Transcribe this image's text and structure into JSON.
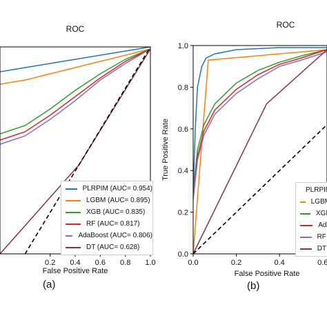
{
  "chart_data": [
    {
      "type": "line",
      "title": "ROC",
      "xlabel": "False Positive Rate",
      "ylabel": "",
      "xlim": [
        -0.2,
        1.0
      ],
      "ylim": [
        0.0,
        1.0
      ],
      "xticks": [
        "0.2",
        "0.4",
        "0.6",
        "0.8",
        "1.0"
      ],
      "yticks": [],
      "legend_position": "bottom-right",
      "series": [
        {
          "name": "PLRPIM (AUC= 0.954)",
          "color": "#1f77b4",
          "x": [
            -0.2,
            -0.1,
            0.0,
            0.2,
            0.4,
            0.6,
            0.8,
            1.0
          ],
          "y": [
            0.88,
            0.89,
            0.9,
            0.92,
            0.94,
            0.96,
            0.98,
            1.0
          ]
        },
        {
          "name": "LGBM (AUC= 0.895)",
          "color": "#ff7f0e",
          "x": [
            -0.2,
            0.0,
            0.2,
            0.4,
            0.6,
            0.8,
            1.0
          ],
          "y": [
            0.82,
            0.84,
            0.87,
            0.9,
            0.93,
            0.96,
            0.99
          ]
        },
        {
          "name": "XGB (AUC= 0.835)",
          "color": "#2ca02c",
          "x": [
            -0.2,
            -0.1,
            0.0,
            0.1,
            0.2,
            0.4,
            0.6,
            0.8,
            1.0
          ],
          "y": [
            0.58,
            0.6,
            0.62,
            0.66,
            0.7,
            0.79,
            0.87,
            0.94,
            0.99
          ]
        },
        {
          "name": "RF (AUC= 0.817)",
          "color": "#d62728",
          "x": [
            -0.2,
            -0.1,
            0.0,
            0.1,
            0.2,
            0.4,
            0.6,
            0.8,
            1.0
          ],
          "y": [
            0.55,
            0.57,
            0.59,
            0.63,
            0.67,
            0.76,
            0.85,
            0.93,
            0.99
          ]
        },
        {
          "name": "AdaBoost (AUC= 0.806)",
          "color": "#9467bd",
          "x": [
            -0.2,
            -0.1,
            0.0,
            0.1,
            0.2,
            0.4,
            0.6,
            0.8,
            1.0
          ],
          "y": [
            0.53,
            0.55,
            0.57,
            0.61,
            0.65,
            0.74,
            0.84,
            0.92,
            0.99
          ]
        },
        {
          "name": "DT (AUC= 0.628)",
          "color": "#8c2d4a",
          "x": [
            -0.2,
            0.43,
            1.0
          ],
          "y": [
            0.0,
            0.43,
            0.99
          ]
        },
        {
          "name": "",
          "color": "#000000",
          "dashed": true,
          "x": [
            -0.2,
            1.0
          ],
          "y": [
            -0.2,
            1.0
          ]
        }
      ]
    },
    {
      "type": "line",
      "title": "ROC",
      "xlabel": "False Positive Rate",
      "ylabel": "True Positive Rate",
      "xlim": [
        0.0,
        0.62
      ],
      "ylim": [
        0.0,
        1.0
      ],
      "xticks": [
        "0.0",
        "0.2",
        "0.4",
        "0.6"
      ],
      "yticks": [
        "0.0",
        "0.2",
        "0.4",
        "0.6",
        "0.8",
        "1.0"
      ],
      "legend_position": "bottom-right",
      "series": [
        {
          "name": "PLRPIM",
          "color": "#1f77b4",
          "x": [
            0.0,
            0.01,
            0.02,
            0.04,
            0.06,
            0.1,
            0.2,
            0.4,
            0.62
          ],
          "y": [
            0.3,
            0.6,
            0.8,
            0.9,
            0.94,
            0.96,
            0.98,
            0.99,
            0.99
          ]
        },
        {
          "name": "LGBM",
          "color": "#ff7f0e",
          "x": [
            0.0,
            0.07,
            0.62
          ],
          "y": [
            0.0,
            0.93,
            0.98
          ]
        },
        {
          "name": "XGB",
          "color": "#2ca02c",
          "x": [
            0.0,
            0.02,
            0.05,
            0.1,
            0.2,
            0.3,
            0.4,
            0.5,
            0.62
          ],
          "y": [
            0.3,
            0.5,
            0.62,
            0.72,
            0.82,
            0.88,
            0.92,
            0.95,
            0.98
          ]
        },
        {
          "name": "Ada",
          "color": "#d62728",
          "x": [
            0.0,
            0.02,
            0.05,
            0.1,
            0.2,
            0.3,
            0.4,
            0.5,
            0.62
          ],
          "y": [
            0.28,
            0.47,
            0.59,
            0.69,
            0.79,
            0.86,
            0.91,
            0.94,
            0.98
          ]
        },
        {
          "name": "RF (",
          "color": "#9467bd",
          "x": [
            0.0,
            0.02,
            0.05,
            0.1,
            0.2,
            0.3,
            0.4,
            0.5,
            0.62
          ],
          "y": [
            0.26,
            0.45,
            0.57,
            0.67,
            0.77,
            0.84,
            0.9,
            0.93,
            0.97
          ]
        },
        {
          "name": "DT (",
          "color": "#8c2d4a",
          "x": [
            0.0,
            0.34,
            0.62
          ],
          "y": [
            0.0,
            0.72,
            0.98
          ]
        },
        {
          "name": "",
          "color": "#000000",
          "dashed": true,
          "x": [
            0.0,
            0.62
          ],
          "y": [
            0.0,
            0.62
          ]
        }
      ]
    }
  ],
  "captions": [
    "(a)",
    "(b)"
  ]
}
